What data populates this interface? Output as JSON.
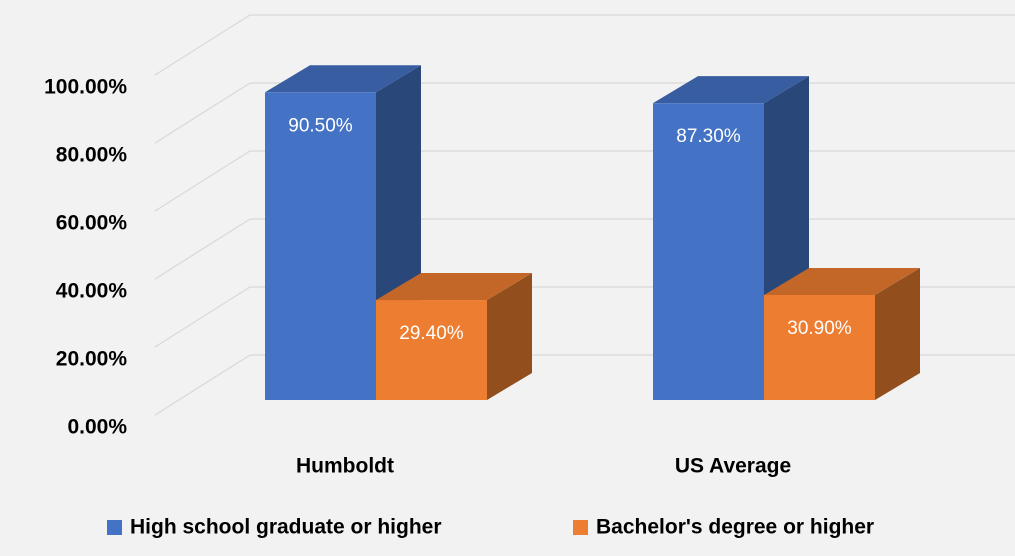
{
  "chart_data": {
    "type": "bar3d",
    "categories": [
      "Humboldt",
      "US Average"
    ],
    "series": [
      {
        "name": "High school graduate or higher",
        "color": "#4472c4",
        "values": [
          90.5,
          87.3
        ],
        "value_labels": [
          "90.50%",
          "87.30%"
        ]
      },
      {
        "name": "Bachelor's degree or higher",
        "color": "#ed7d31",
        "values": [
          29.4,
          30.9
        ],
        "value_labels": [
          "29.40%",
          "30.90%"
        ]
      }
    ],
    "ylim": [
      0,
      100
    ],
    "yticks": [
      {
        "value": 0,
        "label": "0.00%"
      },
      {
        "value": 20,
        "label": "20.00%"
      },
      {
        "value": 40,
        "label": "40.00%"
      },
      {
        "value": 60,
        "label": "60.00%"
      },
      {
        "value": 80,
        "label": "80.00%"
      },
      {
        "value": 100,
        "label": "100.00%"
      }
    ],
    "grid": true,
    "legend": "bottom"
  }
}
